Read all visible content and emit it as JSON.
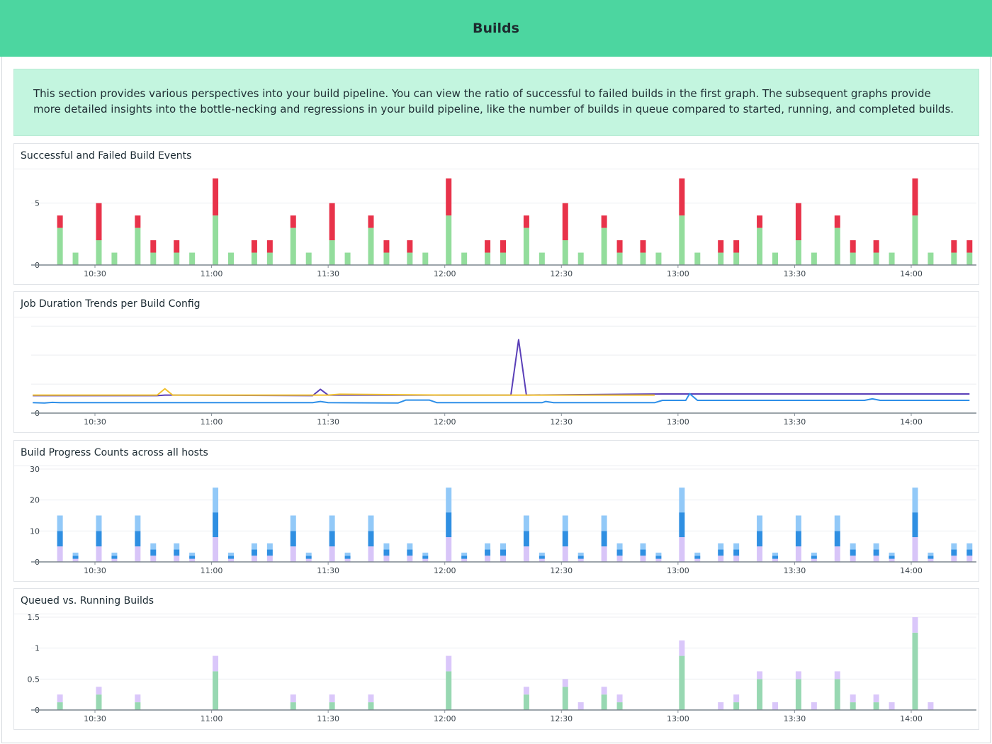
{
  "header": {
    "title": "Builds"
  },
  "info": {
    "text": "This section provides various perspectives into your build pipeline. You can view the ratio of successful to failed builds in the first graph. The subsequent graphs provide more detailed insights into the bottle-necking and regressions in your build pipeline, like the number of builds in queue compared to started, running, and completed builds."
  },
  "chart_data": [
    {
      "type": "bar",
      "stacked": true,
      "title": "Successful and Failed Build Events",
      "x_tick_labels": [
        "10:30",
        "11:00",
        "11:30",
        "12:00",
        "12:30",
        "13:00",
        "13:30",
        "14:00"
      ],
      "y_ticks": [
        0,
        5
      ],
      "ylim": [
        0,
        7.5
      ],
      "grid": true,
      "x": [
        "10:21",
        "10:25",
        "10:31",
        "10:35",
        "10:41",
        "10:45",
        "10:51",
        "10:55",
        "11:01",
        "11:05",
        "11:11",
        "11:15",
        "11:21",
        "11:25",
        "11:31",
        "11:35",
        "11:41",
        "11:45",
        "11:51",
        "11:55",
        "12:01",
        "12:05",
        "12:11",
        "12:15",
        "12:21",
        "12:25",
        "12:31",
        "12:35",
        "12:41",
        "12:45",
        "12:51",
        "12:55",
        "13:01",
        "13:05",
        "13:11",
        "13:15",
        "13:21",
        "13:25",
        "13:31",
        "13:35",
        "13:41",
        "13:45",
        "13:51",
        "13:55",
        "14:01",
        "14:05",
        "14:11",
        "14:15"
      ],
      "series": [
        {
          "color": "#93dd9c",
          "values": [
            3,
            1,
            2,
            1,
            3,
            1,
            1,
            1,
            4,
            1,
            1,
            1,
            3,
            1,
            2,
            1,
            3,
            1,
            1,
            1,
            4,
            1,
            1,
            1,
            3,
            1,
            2,
            1,
            3,
            1,
            1,
            1,
            4,
            1,
            1,
            1,
            3,
            1,
            2,
            1,
            3,
            1,
            1,
            1,
            4,
            1,
            1,
            1
          ]
        },
        {
          "color": "#e8334a",
          "values": [
            1,
            0,
            3,
            0,
            1,
            1,
            1,
            0,
            3,
            0,
            1,
            1,
            1,
            0,
            3,
            0,
            1,
            1,
            1,
            0,
            3,
            0,
            1,
            1,
            1,
            0,
            3,
            0,
            1,
            1,
            1,
            0,
            3,
            0,
            1,
            1,
            1,
            0,
            3,
            0,
            1,
            1,
            1,
            0,
            3,
            0,
            1,
            1
          ]
        }
      ]
    },
    {
      "type": "line",
      "title": "Job Duration Trends per Build Config",
      "x_tick_labels": [
        "10:30",
        "11:00",
        "11:30",
        "12:00",
        "12:30",
        "13:00",
        "13:30",
        "14:00"
      ],
      "y_ticks": [
        0
      ],
      "gridlines": [
        1,
        2,
        3
      ],
      "ylim": [
        0,
        3.2
      ],
      "grid": true,
      "series": [
        {
          "color": "#5a3fb8",
          "points": [
            [
              "10:14",
              0.6
            ],
            [
              "10:46",
              0.6
            ],
            [
              "10:48",
              0.62
            ],
            [
              "11:26",
              0.6
            ],
            [
              "11:28",
              0.82
            ],
            [
              "11:30",
              0.62
            ],
            [
              "12:17",
              0.62
            ],
            [
              "12:19",
              2.53
            ],
            [
              "12:21",
              0.62
            ],
            [
              "12:56",
              0.66
            ],
            [
              "13:30",
              0.66
            ],
            [
              "14:15",
              0.66
            ]
          ]
        },
        {
          "color": "#f2c12e",
          "points": [
            [
              "10:14",
              0.62
            ],
            [
              "10:30",
              0.62
            ],
            [
              "10:46",
              0.62
            ],
            [
              "10:48",
              0.84
            ],
            [
              "10:50",
              0.62
            ],
            [
              "11:30",
              0.62
            ],
            [
              "11:33",
              0.65
            ],
            [
              "12:00",
              0.62
            ],
            [
              "12:30",
              0.62
            ],
            [
              "12:54",
              0.62
            ]
          ]
        },
        {
          "color": "#2e8fe8",
          "points": [
            [
              "10:14",
              0.36
            ],
            [
              "10:17",
              0.35
            ],
            [
              "10:19",
              0.37
            ],
            [
              "10:21",
              0.36
            ],
            [
              "11:26",
              0.36
            ],
            [
              "11:28",
              0.4
            ],
            [
              "11:30",
              0.36
            ],
            [
              "11:48",
              0.35
            ],
            [
              "11:50",
              0.45
            ],
            [
              "11:56",
              0.45
            ],
            [
              "11:58",
              0.36
            ],
            [
              "12:25",
              0.36
            ],
            [
              "12:26",
              0.4
            ],
            [
              "12:28",
              0.36
            ],
            [
              "12:54",
              0.36
            ],
            [
              "12:56",
              0.44
            ],
            [
              "13:02",
              0.44
            ],
            [
              "13:03",
              0.67
            ],
            [
              "13:05",
              0.44
            ],
            [
              "13:48",
              0.44
            ],
            [
              "13:50",
              0.49
            ],
            [
              "13:52",
              0.44
            ],
            [
              "14:15",
              0.44
            ]
          ]
        }
      ]
    },
    {
      "type": "bar",
      "stacked": true,
      "title": "Build Progress Counts across all hosts",
      "x_tick_labels": [
        "10:30",
        "11:00",
        "11:30",
        "12:00",
        "12:30",
        "13:00",
        "13:30",
        "14:00"
      ],
      "y_ticks": [
        0,
        10,
        20,
        30
      ],
      "ylim": [
        0,
        30
      ],
      "grid": true,
      "x": [
        "10:21",
        "10:25",
        "10:31",
        "10:35",
        "10:41",
        "10:45",
        "10:51",
        "10:55",
        "11:01",
        "11:05",
        "11:11",
        "11:15",
        "11:21",
        "11:25",
        "11:31",
        "11:35",
        "11:41",
        "11:45",
        "11:51",
        "11:55",
        "12:01",
        "12:05",
        "12:11",
        "12:15",
        "12:21",
        "12:25",
        "12:31",
        "12:35",
        "12:41",
        "12:45",
        "12:51",
        "12:55",
        "13:01",
        "13:05",
        "13:11",
        "13:15",
        "13:21",
        "13:25",
        "13:31",
        "13:35",
        "13:41",
        "13:45",
        "13:51",
        "13:55",
        "14:01",
        "14:05",
        "14:11",
        "14:15"
      ],
      "series": [
        {
          "color": "#d8c5f8",
          "values": [
            5,
            1,
            5,
            1,
            5,
            2,
            2,
            1,
            8,
            1,
            2,
            2,
            5,
            1,
            5,
            1,
            5,
            2,
            2,
            1,
            8,
            1,
            2,
            2,
            5,
            1,
            5,
            1,
            5,
            2,
            2,
            1,
            8,
            1,
            2,
            2,
            5,
            1,
            5,
            1,
            5,
            2,
            2,
            1,
            8,
            1,
            2,
            2
          ]
        },
        {
          "color": "#2f8fe2",
          "values": [
            5,
            1,
            5,
            1,
            5,
            2,
            2,
            1,
            8,
            1,
            2,
            2,
            5,
            1,
            5,
            1,
            5,
            2,
            2,
            1,
            8,
            1,
            2,
            2,
            5,
            1,
            5,
            1,
            5,
            2,
            2,
            1,
            8,
            1,
            2,
            2,
            5,
            1,
            5,
            1,
            5,
            2,
            2,
            1,
            8,
            1,
            2,
            2
          ]
        },
        {
          "color": "#92c9f8",
          "values": [
            5,
            1,
            5,
            1,
            5,
            2,
            2,
            1,
            8,
            1,
            2,
            2,
            5,
            1,
            5,
            1,
            5,
            2,
            2,
            1,
            8,
            1,
            2,
            2,
            5,
            1,
            5,
            1,
            5,
            2,
            2,
            1,
            8,
            1,
            2,
            2,
            5,
            1,
            5,
            1,
            5,
            2,
            2,
            1,
            8,
            1,
            2,
            2
          ]
        }
      ]
    },
    {
      "type": "bar",
      "stacked": true,
      "title": "Queued vs. Running Builds",
      "x_tick_labels": [
        "10:30",
        "11:00",
        "11:30",
        "12:00",
        "12:30",
        "13:00",
        "13:30",
        "14:00"
      ],
      "y_ticks": [
        0,
        0.5,
        1,
        1.5
      ],
      "y_tick_labels": [
        "0",
        "0.5",
        "1",
        "1.5"
      ],
      "ylim": [
        0,
        1.5
      ],
      "grid": true,
      "x": [
        "10:21",
        "10:25",
        "10:31",
        "10:35",
        "10:41",
        "10:45",
        "10:51",
        "10:55",
        "11:01",
        "11:05",
        "11:11",
        "11:15",
        "11:21",
        "11:25",
        "11:31",
        "11:35",
        "11:41",
        "11:45",
        "11:51",
        "11:55",
        "12:01",
        "12:05",
        "12:11",
        "12:15",
        "12:21",
        "12:25",
        "12:31",
        "12:35",
        "12:41",
        "12:45",
        "12:51",
        "12:55",
        "13:01",
        "13:05",
        "13:11",
        "13:15",
        "13:21",
        "13:25",
        "13:31",
        "13:35",
        "13:41",
        "13:45",
        "13:51",
        "13:55",
        "14:01",
        "14:05",
        "14:11",
        "14:15"
      ],
      "series": [
        {
          "color": "#98d8b2",
          "values": [
            0.125,
            0,
            0.25,
            0,
            0.125,
            0,
            0,
            0,
            0.625,
            0,
            0,
            0,
            0.125,
            0,
            0.125,
            0,
            0.125,
            0,
            0,
            0,
            0.625,
            0,
            0,
            0,
            0.25,
            0,
            0.375,
            0,
            0.25,
            0.125,
            0,
            0,
            0.875,
            0,
            0,
            0.125,
            0.5,
            0,
            0.5,
            0,
            0.5,
            0.125,
            0.125,
            0,
            1.25,
            0,
            0,
            0
          ]
        },
        {
          "color": "#dac7fa",
          "values": [
            0.125,
            0,
            0.125,
            0,
            0.125,
            0,
            0,
            0,
            0.25,
            0,
            0,
            0,
            0.125,
            0,
            0.125,
            0,
            0.125,
            0,
            0,
            0,
            0.25,
            0,
            0,
            0,
            0.125,
            0,
            0.125,
            0.125,
            0.125,
            0.125,
            0,
            0,
            0.25,
            0,
            0.125,
            0.125,
            0.125,
            0.125,
            0.125,
            0.125,
            0.125,
            0.125,
            0.125,
            0.125,
            0.25,
            0.125,
            0,
            0
          ]
        }
      ]
    }
  ]
}
